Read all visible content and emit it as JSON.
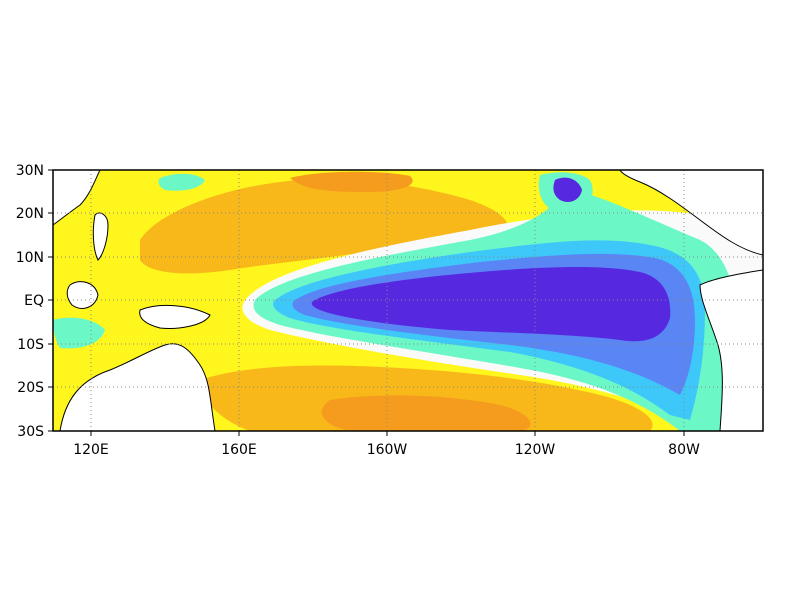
{
  "map": {
    "lat_labels": [
      "30N",
      "20N",
      "10N",
      "EQ",
      "10S",
      "20S",
      "30S"
    ],
    "lon_labels": [
      "120E",
      "160E",
      "160W",
      "120W",
      "80W"
    ],
    "grid": "dotted",
    "colors": {
      "warm_strong": "#f59b1d",
      "warm_medium": "#f9b81a",
      "warm_light": "#fef61c",
      "neutral": "#fafafa",
      "cool_light": "#6cf7c7",
      "cool_medium": "#3ec7f9",
      "cool_strong": "#5a86f5",
      "cool_deep": "#5629e0",
      "land": "#ffffff",
      "coast": "#000000"
    }
  }
}
